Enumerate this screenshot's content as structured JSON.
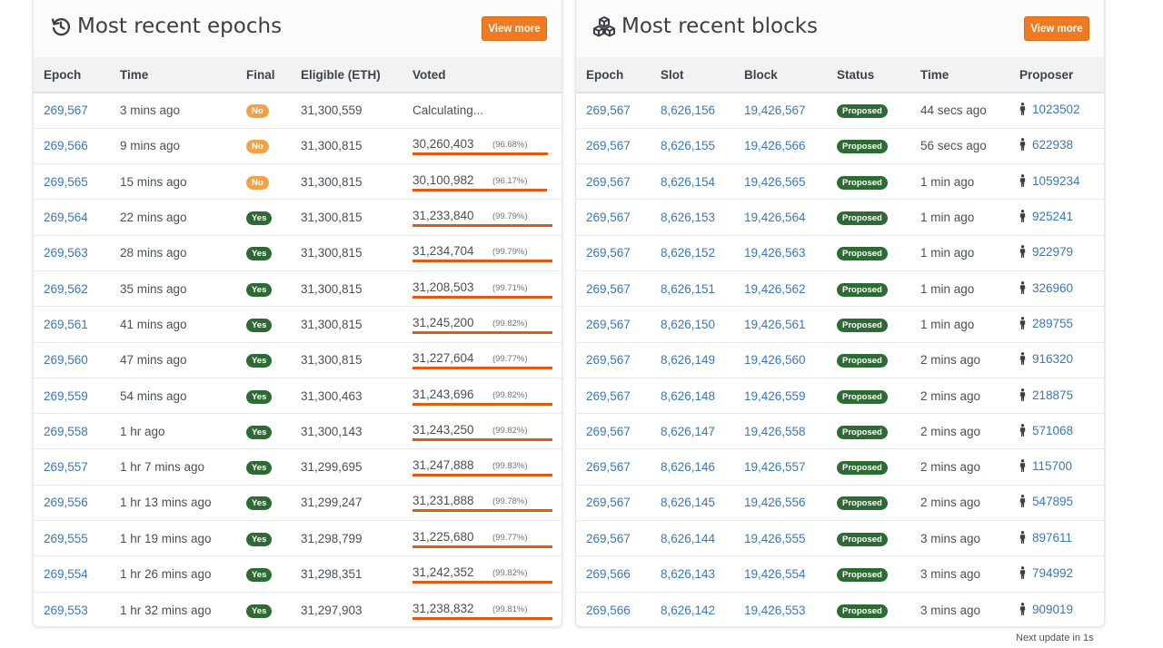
{
  "colors": {
    "accent": "#ee7b21",
    "link": "#3a78b6",
    "success": "#2e6b34",
    "warning": "#f2a246",
    "bar": "#e05a0f"
  },
  "epochs": {
    "title": "Most recent epochs",
    "icon": "history-icon",
    "view_more": "View more",
    "headers": {
      "epoch": "Epoch",
      "time": "Time",
      "final": "Final",
      "eligible": "Eligible (ETH)",
      "voted": "Voted"
    },
    "rows": [
      {
        "epoch": "269,567",
        "time": "3 mins ago",
        "final": "No",
        "eligible": "31,300,559",
        "voted": "Calculating...",
        "pct": "",
        "fraction": 0
      },
      {
        "epoch": "269,566",
        "time": "9 mins ago",
        "final": "No",
        "eligible": "31,300,815",
        "voted": "30,260,403",
        "pct": "(96.68%)",
        "fraction": 0.9668
      },
      {
        "epoch": "269,565",
        "time": "15 mins ago",
        "final": "No",
        "eligible": "31,300,815",
        "voted": "30,100,982",
        "pct": "(96.17%)",
        "fraction": 0.9617
      },
      {
        "epoch": "269,564",
        "time": "22 mins ago",
        "final": "Yes",
        "eligible": "31,300,815",
        "voted": "31,233,840",
        "pct": "(99.79%)",
        "fraction": 0.9979
      },
      {
        "epoch": "269,563",
        "time": "28 mins ago",
        "final": "Yes",
        "eligible": "31,300,815",
        "voted": "31,234,704",
        "pct": "(99.79%)",
        "fraction": 0.9979
      },
      {
        "epoch": "269,562",
        "time": "35 mins ago",
        "final": "Yes",
        "eligible": "31,300,815",
        "voted": "31,208,503",
        "pct": "(99.71%)",
        "fraction": 0.9971
      },
      {
        "epoch": "269,561",
        "time": "41 mins ago",
        "final": "Yes",
        "eligible": "31,300,815",
        "voted": "31,245,200",
        "pct": "(99.82%)",
        "fraction": 0.9982
      },
      {
        "epoch": "269,560",
        "time": "47 mins ago",
        "final": "Yes",
        "eligible": "31,300,815",
        "voted": "31,227,604",
        "pct": "(99.77%)",
        "fraction": 0.9977
      },
      {
        "epoch": "269,559",
        "time": "54 mins ago",
        "final": "Yes",
        "eligible": "31,300,463",
        "voted": "31,243,696",
        "pct": "(99.82%)",
        "fraction": 0.9982
      },
      {
        "epoch": "269,558",
        "time": "1 hr ago",
        "final": "Yes",
        "eligible": "31,300,143",
        "voted": "31,243,250",
        "pct": "(99.82%)",
        "fraction": 0.9982
      },
      {
        "epoch": "269,557",
        "time": "1 hr 7 mins ago",
        "final": "Yes",
        "eligible": "31,299,695",
        "voted": "31,247,888",
        "pct": "(99.83%)",
        "fraction": 0.9983
      },
      {
        "epoch": "269,556",
        "time": "1 hr 13 mins ago",
        "final": "Yes",
        "eligible": "31,299,247",
        "voted": "31,231,888",
        "pct": "(99.78%)",
        "fraction": 0.9978
      },
      {
        "epoch": "269,555",
        "time": "1 hr 19 mins ago",
        "final": "Yes",
        "eligible": "31,298,799",
        "voted": "31,225,680",
        "pct": "(99.77%)",
        "fraction": 0.9977
      },
      {
        "epoch": "269,554",
        "time": "1 hr 26 mins ago",
        "final": "Yes",
        "eligible": "31,298,351",
        "voted": "31,242,352",
        "pct": "(99.82%)",
        "fraction": 0.9982
      },
      {
        "epoch": "269,553",
        "time": "1 hr 32 mins ago",
        "final": "Yes",
        "eligible": "31,297,903",
        "voted": "31,238,832",
        "pct": "(99.81%)",
        "fraction": 0.9981
      }
    ]
  },
  "blocks": {
    "title": "Most recent blocks",
    "icon": "cubes-icon",
    "view_more": "View more",
    "headers": {
      "epoch": "Epoch",
      "slot": "Slot",
      "block": "Block",
      "status": "Status",
      "time": "Time",
      "proposer": "Proposer"
    },
    "rows": [
      {
        "epoch": "269,567",
        "slot": "8,626,156",
        "block": "19,426,567",
        "status": "Proposed",
        "time": "44 secs ago",
        "proposer": "1023502"
      },
      {
        "epoch": "269,567",
        "slot": "8,626,155",
        "block": "19,426,566",
        "status": "Proposed",
        "time": "56 secs ago",
        "proposer": "622938"
      },
      {
        "epoch": "269,567",
        "slot": "8,626,154",
        "block": "19,426,565",
        "status": "Proposed",
        "time": "1 min ago",
        "proposer": "1059234"
      },
      {
        "epoch": "269,567",
        "slot": "8,626,153",
        "block": "19,426,564",
        "status": "Proposed",
        "time": "1 min ago",
        "proposer": "925241"
      },
      {
        "epoch": "269,567",
        "slot": "8,626,152",
        "block": "19,426,563",
        "status": "Proposed",
        "time": "1 min ago",
        "proposer": "922979"
      },
      {
        "epoch": "269,567",
        "slot": "8,626,151",
        "block": "19,426,562",
        "status": "Proposed",
        "time": "1 min ago",
        "proposer": "326960"
      },
      {
        "epoch": "269,567",
        "slot": "8,626,150",
        "block": "19,426,561",
        "status": "Proposed",
        "time": "1 min ago",
        "proposer": "289755"
      },
      {
        "epoch": "269,567",
        "slot": "8,626,149",
        "block": "19,426,560",
        "status": "Proposed",
        "time": "2 mins ago",
        "proposer": "916320"
      },
      {
        "epoch": "269,567",
        "slot": "8,626,148",
        "block": "19,426,559",
        "status": "Proposed",
        "time": "2 mins ago",
        "proposer": "218875"
      },
      {
        "epoch": "269,567",
        "slot": "8,626,147",
        "block": "19,426,558",
        "status": "Proposed",
        "time": "2 mins ago",
        "proposer": "571068"
      },
      {
        "epoch": "269,567",
        "slot": "8,626,146",
        "block": "19,426,557",
        "status": "Proposed",
        "time": "2 mins ago",
        "proposer": "115700"
      },
      {
        "epoch": "269,567",
        "slot": "8,626,145",
        "block": "19,426,556",
        "status": "Proposed",
        "time": "2 mins ago",
        "proposer": "547895"
      },
      {
        "epoch": "269,567",
        "slot": "8,626,144",
        "block": "19,426,555",
        "status": "Proposed",
        "time": "3 mins ago",
        "proposer": "897611"
      },
      {
        "epoch": "269,566",
        "slot": "8,626,143",
        "block": "19,426,554",
        "status": "Proposed",
        "time": "3 mins ago",
        "proposer": "794992"
      },
      {
        "epoch": "269,566",
        "slot": "8,626,142",
        "block": "19,426,553",
        "status": "Proposed",
        "time": "3 mins ago",
        "proposer": "909019"
      }
    ]
  },
  "footer": {
    "next_update": "Next update in 1s"
  }
}
